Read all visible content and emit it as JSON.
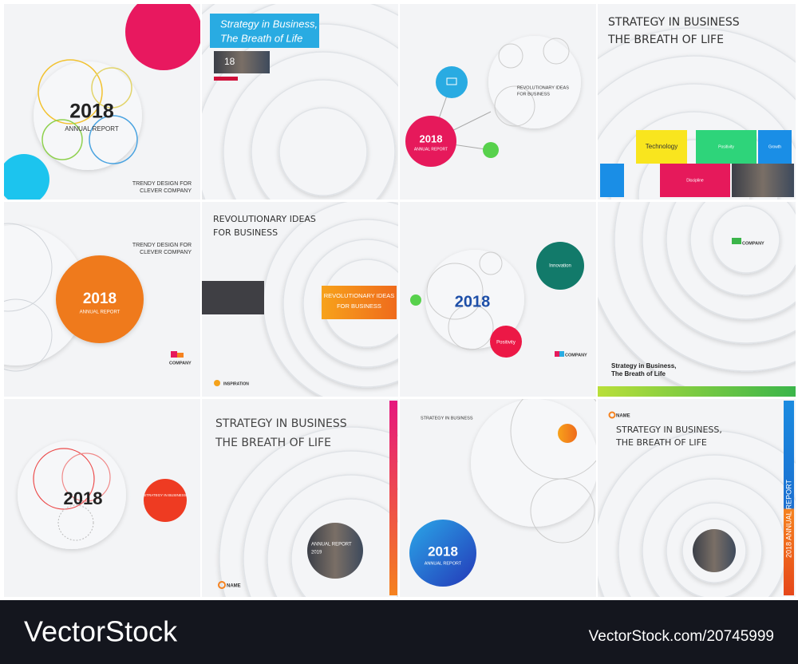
{
  "panels": [
    {
      "texts": [
        "2018",
        "ANNUAL REPORT",
        "TRENDY DESIGN FOR",
        "CLEVER COMPANY"
      ]
    },
    {
      "texts": [
        "Strategy in Business,",
        "The Breath of Life",
        "18"
      ]
    },
    {
      "texts": [
        "REVOLUTIONARY IDEAS",
        "FOR BUSINESS",
        "2018",
        "ANNUAL REPORT"
      ]
    },
    {
      "texts": [
        "STRATEGY IN BUSINESS",
        "THE BREATH OF LIFE",
        "Technology",
        "Positivity",
        "Growth",
        "Discipline"
      ]
    },
    {
      "texts": [
        "TRENDY DESIGN FOR",
        "CLEVER COMPANY",
        "2018",
        "ANNUAL REPORT",
        "COMPANY"
      ]
    },
    {
      "texts": [
        "REVOLUTIONARY IDEAS",
        "FOR BUSINESS",
        "REVOLUTIONARY IDEAS",
        "FOR BUSINESS",
        "INSPIRATION"
      ]
    },
    {
      "texts": [
        "Innovation",
        "2018",
        "Positivity",
        "COMPANY"
      ]
    },
    {
      "texts": [
        "COMPANY",
        "Strategy in Business,",
        "The Breath of Life"
      ]
    },
    {
      "texts": [
        "2018",
        "STRATEGY IN BUSINESS"
      ]
    },
    {
      "texts": [
        "STRATEGY IN BUSINESS",
        "THE BREATH OF LIFE",
        "ANNUAL REPORT",
        "2019",
        "NAME"
      ]
    },
    {
      "texts": [
        "STRATEGY IN BUSINESS",
        "2018",
        "ANNUAL REPORT"
      ]
    },
    {
      "texts": [
        "NAME",
        "STRATEGY IN BUSINESS,",
        "THE BREATH OF LIFE",
        "2018 ANNUAL REPORT"
      ]
    }
  ],
  "footer": {
    "logo": "VectorStock",
    "id": "VectorStock.com/20745999"
  }
}
